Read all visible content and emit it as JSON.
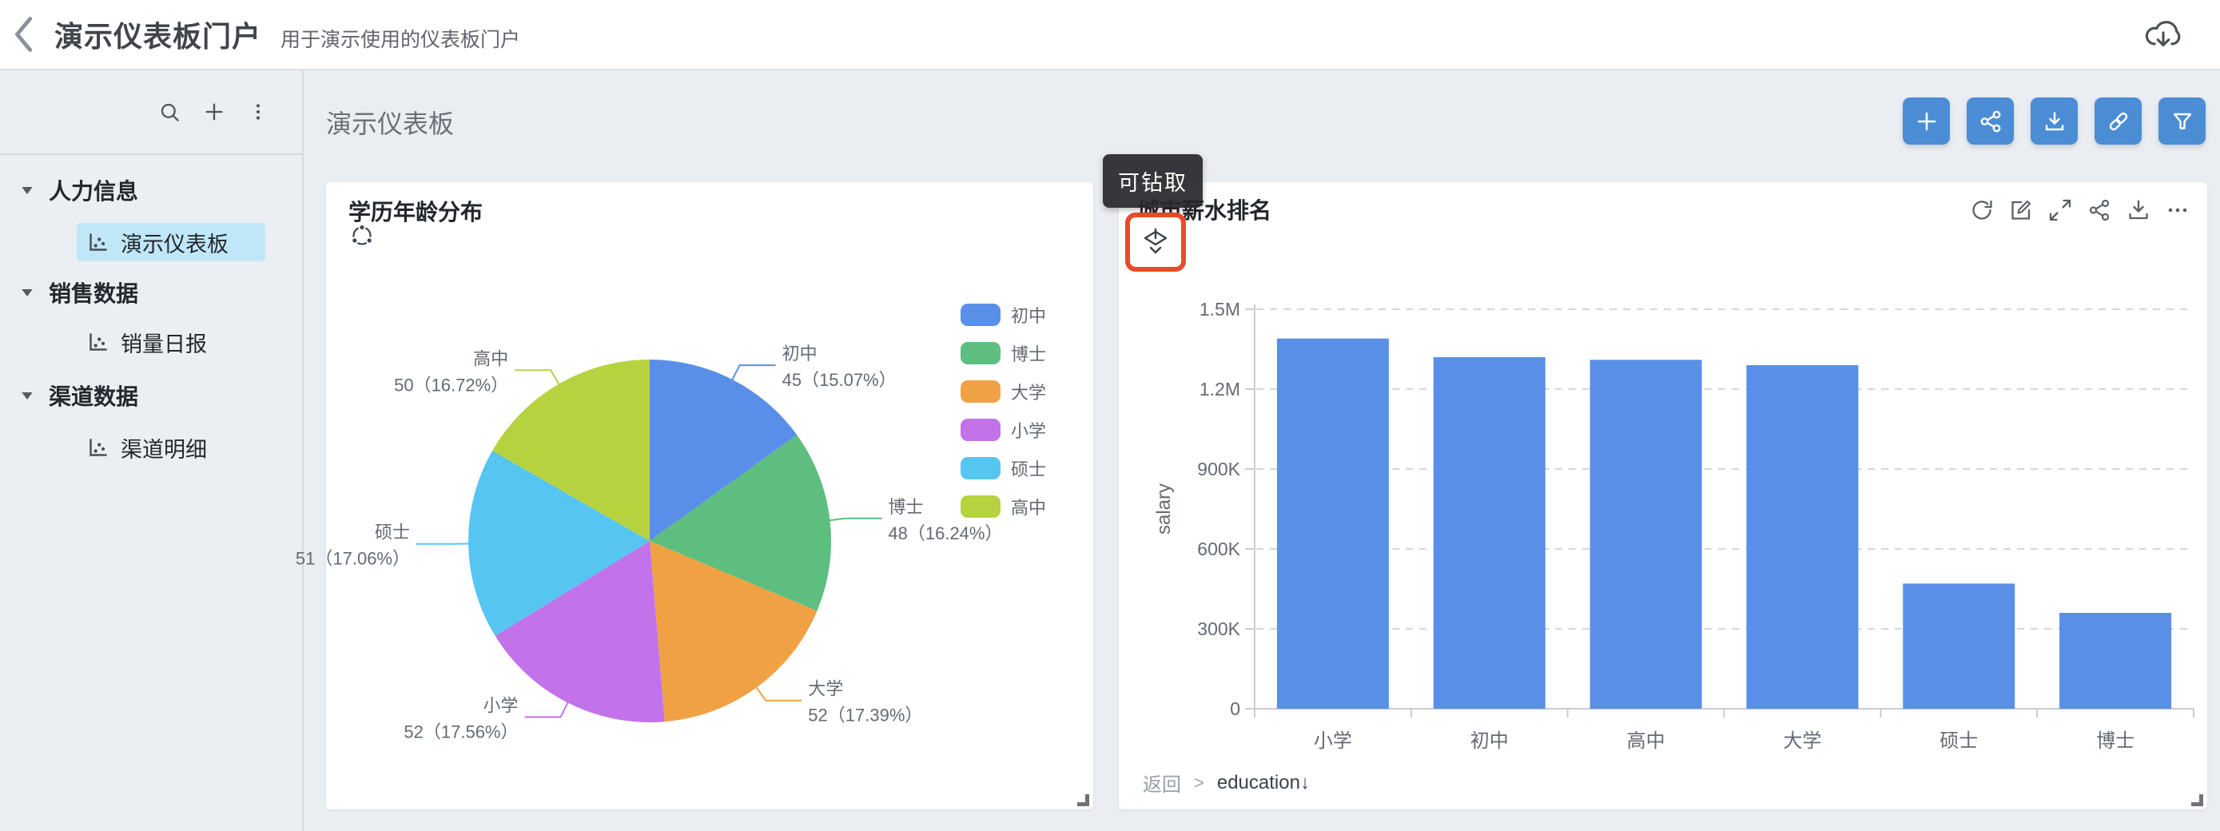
{
  "header": {
    "title": "演示仪表板门户",
    "subtitle": "用于演示使用的仪表板门户"
  },
  "sidebar": {
    "groups": [
      {
        "label": "人力信息",
        "children": [
          {
            "label": "演示仪表板",
            "active": true
          }
        ]
      },
      {
        "label": "销售数据",
        "children": [
          {
            "label": "销量日报",
            "active": false
          }
        ]
      },
      {
        "label": "渠道数据",
        "children": [
          {
            "label": "渠道明细",
            "active": false
          }
        ]
      }
    ]
  },
  "main": {
    "title": "演示仪表板"
  },
  "tooltip": {
    "text": "可钻取"
  },
  "cards": {
    "pie": {
      "title": "学历年龄分布"
    },
    "bar": {
      "title": "城市薪水排名",
      "breadcrumb": {
        "back": "返回",
        "separator": ">",
        "current": "education↓"
      }
    }
  },
  "colors": {
    "accent_blue": "#4B8DD5",
    "active_item_bg": "#BFE7F7",
    "bar_fill": "#5A8FE8",
    "annotation_red": "#EA4A2B",
    "tooltip_bg": "#28292C",
    "chart_text": "#646A73"
  },
  "icons": {
    "header": [
      "back-chevron",
      "cloud-download"
    ],
    "sidebar_toolbar": [
      "search",
      "plus",
      "kebab-menu"
    ],
    "tree_item": "chart",
    "portal_toolbar": [
      "plus",
      "share",
      "download",
      "link",
      "filter"
    ],
    "pie_card": [
      "linkage"
    ],
    "bar_card_toolbar": [
      "refresh",
      "edit",
      "expand",
      "share",
      "download",
      "more"
    ],
    "bar_card": [
      "drill-down"
    ]
  },
  "chart_data": [
    {
      "type": "pie",
      "title": "学历年龄分布",
      "legend_position": "right",
      "series": [
        {
          "name": "初中",
          "value": 45,
          "pct": "15.07%",
          "color": "#598FE8"
        },
        {
          "name": "博士",
          "value": 48,
          "pct": "16.24%",
          "color": "#5DBE80"
        },
        {
          "name": "大学",
          "value": 52,
          "pct": "17.39%",
          "color": "#F0A144"
        },
        {
          "name": "小学",
          "value": 52,
          "pct": "17.56%",
          "color": "#C273EA"
        },
        {
          "name": "硕士",
          "value": 51,
          "pct": "17.06%",
          "color": "#57C5F2"
        },
        {
          "name": "高中",
          "value": 50,
          "pct": "16.72%",
          "color": "#B6D33F"
        }
      ],
      "label_format": "{value}（{pct}）",
      "legend": [
        "初中",
        "博士",
        "大学",
        "小学",
        "硕士",
        "高中"
      ]
    },
    {
      "type": "bar",
      "title": "城市薪水排名",
      "xlabel": "",
      "ylabel": "salary",
      "categories": [
        "小学",
        "初中",
        "高中",
        "大学",
        "硕士",
        "博士"
      ],
      "values": [
        1390000,
        1320000,
        1310000,
        1290000,
        470000,
        360000
      ],
      "ylim": [
        0,
        1500000
      ],
      "ytick_labels": [
        "0",
        "300K",
        "600K",
        "900K",
        "1.2M",
        "1.5M"
      ],
      "grid": "dashed-horizontal",
      "bar_color": "#5A8FE8"
    }
  ]
}
